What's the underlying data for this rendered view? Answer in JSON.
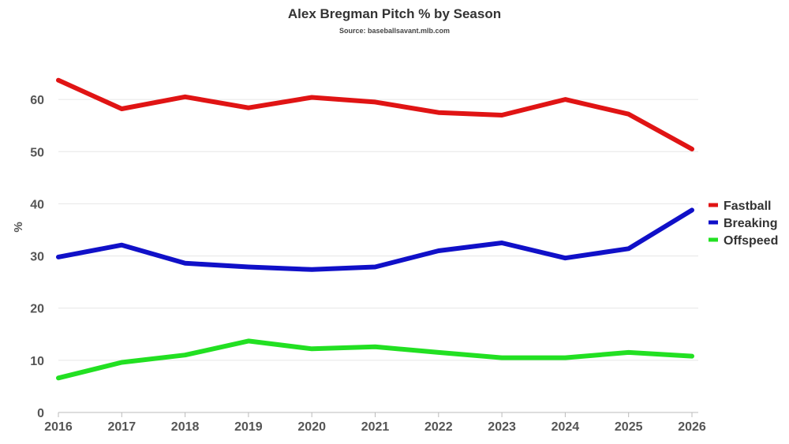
{
  "chart_data": {
    "type": "line",
    "title": "Alex Bregman Pitch % by Season",
    "subtitle": "Source: baseballsavant.mlb.com",
    "xlabel": "",
    "ylabel": "%",
    "x": [
      "2016",
      "2017",
      "2018",
      "2019",
      "2020",
      "2021",
      "2022",
      "2023",
      "2024",
      "2025",
      "2026"
    ],
    "ylim": [
      0,
      70
    ],
    "yticks": [
      0,
      10,
      20,
      30,
      40,
      50,
      60
    ],
    "grid": true,
    "legend_position": "right",
    "series": [
      {
        "name": "Fastball",
        "color": "#e01414",
        "values": [
          63.7,
          58.2,
          60.5,
          58.4,
          60.4,
          59.5,
          57.5,
          57.0,
          60.0,
          57.2,
          50.5
        ]
      },
      {
        "name": "Breaking",
        "color": "#1010c8",
        "values": [
          29.8,
          32.1,
          28.6,
          27.9,
          27.4,
          27.9,
          31.0,
          32.5,
          29.6,
          31.4,
          38.8
        ]
      },
      {
        "name": "Offspeed",
        "color": "#22e022",
        "values": [
          6.6,
          9.6,
          11.0,
          13.7,
          12.2,
          12.6,
          11.5,
          10.5,
          10.5,
          11.5,
          10.8
        ]
      }
    ]
  }
}
